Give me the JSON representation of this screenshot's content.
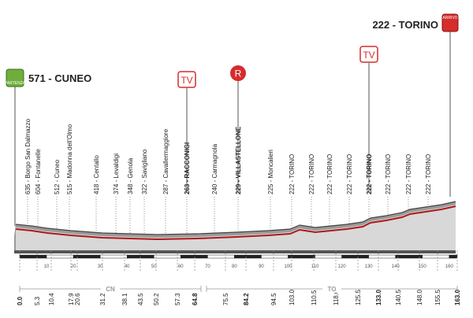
{
  "header": {
    "start": "571 - CUNEO",
    "finish": "222 - TORINO",
    "start_badge": "PARTENZA",
    "finish_badge": "ARRIVO"
  },
  "icons": {
    "tv": "TV",
    "r": "R"
  },
  "places": [
    {
      "label": "635 - Borgo San Dalmazzo"
    },
    {
      "label": "604 - Fontanelle"
    },
    {
      "label": "512 - Cuneo"
    },
    {
      "label": "515 - Madonna dell'Olmo"
    },
    {
      "label": "418 - Centallo"
    },
    {
      "label": "374 - Levaldigi"
    },
    {
      "label": "348 - Genola"
    },
    {
      "label": "322 - Savigliano"
    },
    {
      "label": "287 - Cavallermaggiore"
    },
    {
      "label": "263 - RACCONIGI",
      "bold": true
    },
    {
      "label": "240 - Carmagnola"
    },
    {
      "label": "229 - VILLASTELLONE",
      "bold": true
    },
    {
      "label": "225 - Moncalieri"
    },
    {
      "label": "222 - TORINO"
    },
    {
      "label": "222 - TORINO"
    },
    {
      "label": "222 - TORINO"
    },
    {
      "label": "222 - TORINO"
    },
    {
      "label": "222 - TORINO",
      "bold": true
    },
    {
      "label": "222 - TORINO"
    },
    {
      "label": "222 - TORINO"
    },
    {
      "label": "222 - TORINO"
    }
  ],
  "km": [
    {
      "label": "0.0",
      "bold": true
    },
    {
      "label": "5.3"
    },
    {
      "label": "10.4"
    },
    {
      "label": "17.9"
    },
    {
      "label": "20.6"
    },
    {
      "label": "31.2"
    },
    {
      "label": "38.1"
    },
    {
      "label": "43.5"
    },
    {
      "label": "50.2"
    },
    {
      "label": "57.3"
    },
    {
      "label": "64.8",
      "bold": true
    },
    {
      "label": "75.5"
    },
    {
      "label": "84.2",
      "bold": true
    },
    {
      "label": "94.5"
    },
    {
      "label": "103.0"
    },
    {
      "label": "110.5"
    },
    {
      "label": "118.0"
    },
    {
      "label": "125.5"
    },
    {
      "label": "133.0",
      "bold": true
    },
    {
      "label": "140.5"
    },
    {
      "label": "148.0"
    },
    {
      "label": "155.5"
    },
    {
      "label": "163.0",
      "bold": true
    }
  ],
  "ruler": [
    "10",
    "20",
    "30",
    "40",
    "50",
    "60",
    "70",
    "80",
    "90",
    "100",
    "110",
    "120",
    "130",
    "140",
    "150",
    "160"
  ],
  "provinces": [
    "CN",
    "TO"
  ]
}
